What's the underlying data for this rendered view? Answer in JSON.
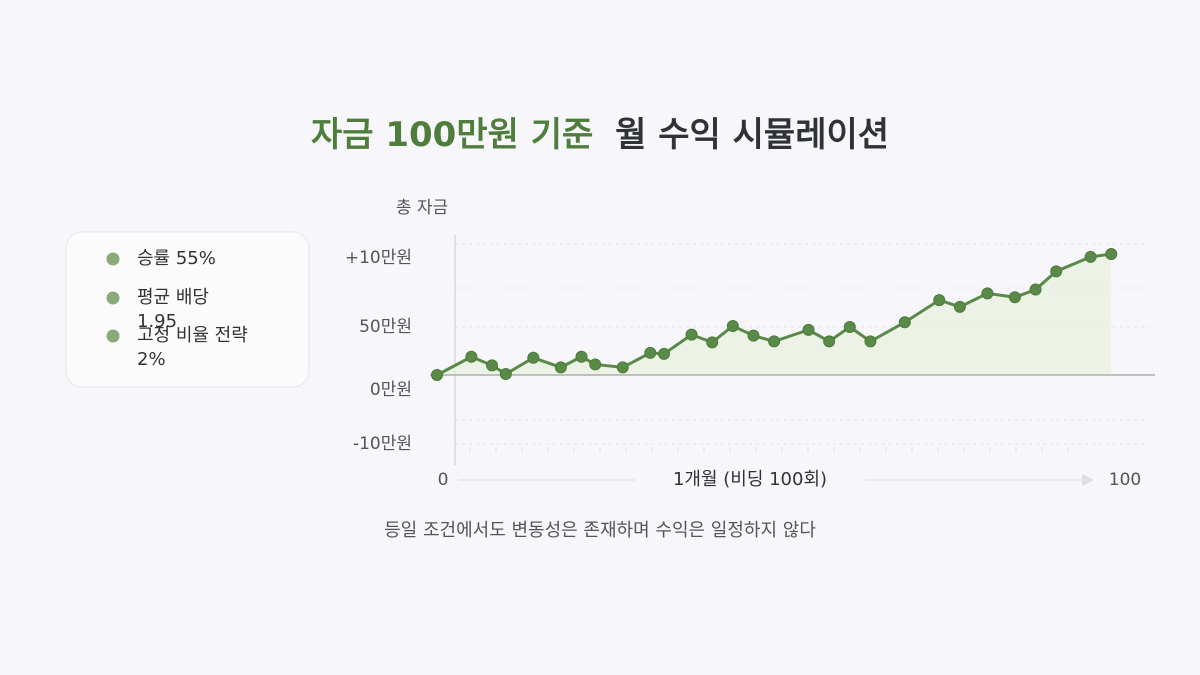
{
  "chart_data": {
    "type": "line",
    "title_highlight": "자금 100만원 기준",
    "title_rest": "월 수익 시뮬레이션",
    "y_axis_label": "총 자금",
    "y_labels": [
      "+10만원",
      "50만원",
      "0만원",
      "-10만원"
    ],
    "x_axis_label": "1개월 (비딩 100회)",
    "notes": [
      "승률 55%",
      "평균 배당 1.95",
      "고정 비율 전략 2%"
    ],
    "caption": "등일 조건에서도 변동성은 존재하며 수익은 일정하지 않다",
    "x": [
      0,
      5,
      8,
      10,
      14,
      18,
      21,
      23,
      27,
      31,
      33,
      37,
      40,
      43,
      46,
      49,
      54,
      57,
      60,
      63,
      68,
      73,
      76,
      80,
      84,
      87,
      90,
      95,
      98
    ],
    "series": [
      {
        "color": "#5a8a48",
        "values": [
          0,
          19,
          10,
          1,
          18,
          8,
          19,
          11,
          8,
          23,
          22,
          42,
          34,
          51,
          41,
          35,
          47,
          35,
          50,
          35,
          55,
          78,
          71,
          85,
          81,
          89,
          108,
          123,
          126
        ]
      }
    ],
    "xlim": [
      0,
      100
    ],
    "xticks": [
      0,
      100
    ],
    "ylim": [
      -75,
      140
    ]
  }
}
